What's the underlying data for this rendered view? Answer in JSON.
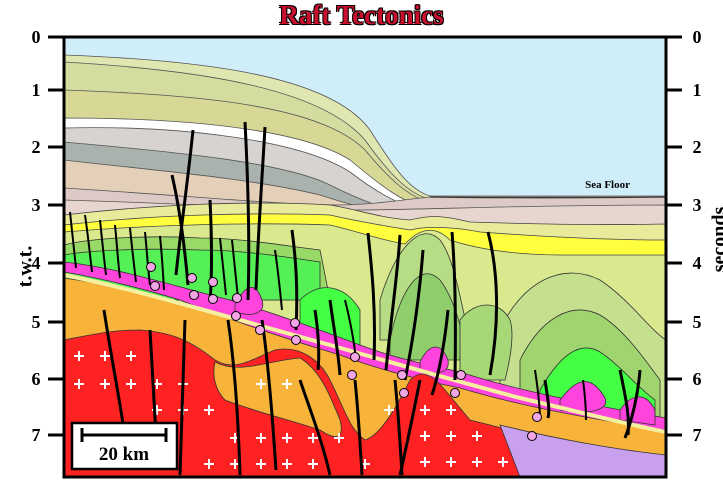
{
  "title": "Raft Tectonics",
  "left_axis_label": "t.w.t.",
  "right_axis_label": "seconds",
  "ticks": [
    "0",
    "1",
    "2",
    "3",
    "4",
    "5",
    "6",
    "7"
  ],
  "sea_floor_label": "Sea Floor",
  "scale_bar_label": "20 km",
  "colors": {
    "title": "#c8102e",
    "sea": "#cfeefa",
    "basement": "#ff2222",
    "salt": "#ff44dd",
    "orange": "#f8b43a",
    "yellow": "#ffff22",
    "green": "#44ff44"
  }
}
